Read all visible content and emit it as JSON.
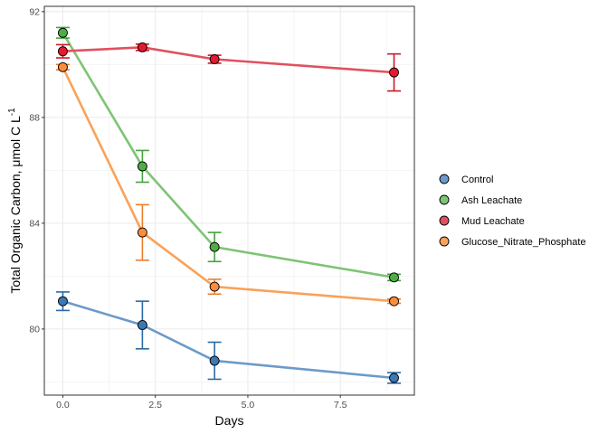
{
  "chart_data": {
    "type": "line",
    "title": "",
    "xlabel": "Days",
    "ylabel": "Total Organic Carbon, μmol C L",
    "ylabel_superscript": "-1",
    "xlim": [
      -0.5,
      9.5
    ],
    "ylim": [
      77.5,
      92.2
    ],
    "x_ticks": [
      0.0,
      2.5,
      5.0,
      7.5
    ],
    "x_tick_labels": [
      "0.0",
      "2.5",
      "5.0",
      "7.5"
    ],
    "y_ticks": [
      80,
      84,
      88,
      92
    ],
    "y_tick_labels": [
      "80",
      "84",
      "88",
      "92"
    ],
    "grid": true,
    "legend_position": "right",
    "series": [
      {
        "name": "Control",
        "line_color": "#6C9AC9",
        "marker_color": "#3C78B4",
        "err_color": "#2B6AA6",
        "x": [
          0,
          2.15,
          4.1,
          8.95
        ],
        "y": [
          81.05,
          80.15,
          78.8,
          78.15
        ],
        "err": [
          0.35,
          0.9,
          0.7,
          0.2
        ]
      },
      {
        "name": "Ash Leachate",
        "line_color": "#7EC475",
        "marker_color": "#4EAE45",
        "err_color": "#47A13E",
        "x": [
          0,
          2.15,
          4.1,
          8.95
        ],
        "y": [
          91.2,
          86.15,
          83.1,
          81.95
        ],
        "err": [
          0.2,
          0.6,
          0.55,
          0.12
        ]
      },
      {
        "name": "Mud Leachate",
        "line_color": "#E0515F",
        "marker_color": "#E41A2E",
        "err_color": "#D01728",
        "x": [
          0,
          2.15,
          4.1,
          8.95
        ],
        "y": [
          90.5,
          90.65,
          90.2,
          89.7
        ],
        "err": [
          0.25,
          0.12,
          0.15,
          0.7
        ]
      },
      {
        "name": "Glucose_Nitrate_Phosphate",
        "line_color": "#F9A25A",
        "marker_color": "#FB8C3C",
        "err_color": "#EE7D2A",
        "x": [
          0,
          2.15,
          4.1,
          8.95
        ],
        "y": [
          89.9,
          83.65,
          81.6,
          81.05
        ],
        "err": [
          0.1,
          1.05,
          0.28,
          0.08
        ]
      }
    ]
  }
}
